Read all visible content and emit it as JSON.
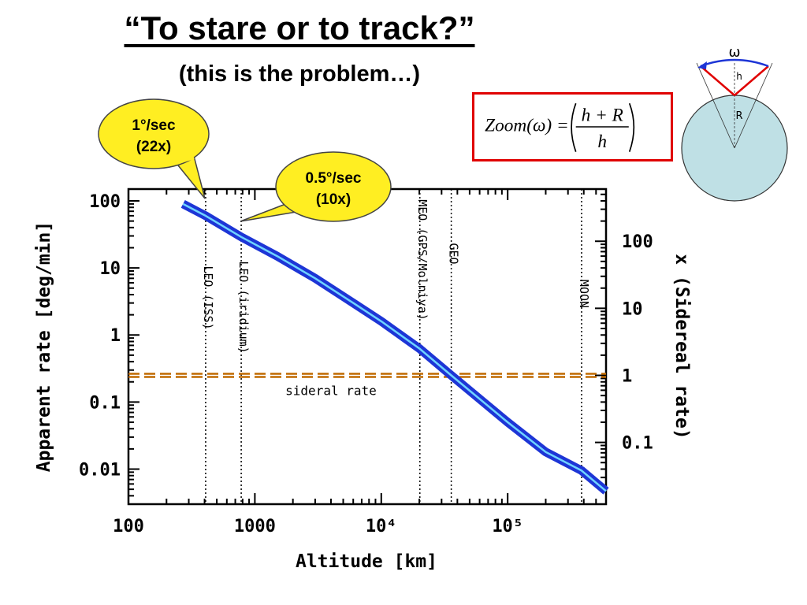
{
  "slide": {
    "title": "“To stare or to track?”",
    "subtitle": "(this is the problem…)"
  },
  "formula": {
    "lhs": "Zoom(ω) =",
    "numerator": "h + R",
    "denominator": "h"
  },
  "diagram": {
    "omega": "ω",
    "h": "h",
    "R": "R",
    "circle_color": "#bfe0e5",
    "arc_color": "#1d35d6",
    "cone_color": "#e00000"
  },
  "callouts": [
    {
      "line1": "1°/sec",
      "line2": "(22x)"
    },
    {
      "line1": "0.5°/sec",
      "line2": "(10x)"
    }
  ],
  "chart_data": {
    "type": "line",
    "xlabel": "Altitude [km]",
    "ylabel": "Apparent rate [deg/min]",
    "y2label": "x (Sidereal rate)",
    "xscale": "log",
    "yscale": "log",
    "xlim": [
      100,
      600000
    ],
    "ylim": [
      0.003,
      150
    ],
    "x_ticks": [
      "100",
      "1000",
      "10⁴",
      "10⁵"
    ],
    "y_ticks": [
      "100",
      "10",
      "1",
      "0.1",
      "0.01"
    ],
    "y2_ticks": [
      "100",
      "10",
      "1",
      "0.1"
    ],
    "series": [
      {
        "x": [
          270,
          408,
          780,
          1500,
          3000,
          6000,
          10000,
          20200,
          35786,
          100000,
          200000,
          384400,
          600000
        ],
        "y": [
          90,
          60,
          29,
          15,
          7,
          3.0,
          1.6,
          0.62,
          0.25,
          0.05,
          0.018,
          0.0095,
          0.0047
        ]
      }
    ],
    "sidereal_rate": {
      "value": 0.25,
      "label": "sideral rate",
      "color": "#c06a00"
    },
    "reference_lines": [
      {
        "x": 408,
        "label": "LEO (ISS)"
      },
      {
        "x": 780,
        "label": "LEO (iridium)"
      },
      {
        "x": 20200,
        "label": "MEO (GPS/Molniya)"
      },
      {
        "x": 35786,
        "label": "GEO"
      },
      {
        "x": 384400,
        "label": "MOON"
      }
    ],
    "line_color": "#1d35d6",
    "highlight_color": "#6fd4ff",
    "grid": false
  }
}
